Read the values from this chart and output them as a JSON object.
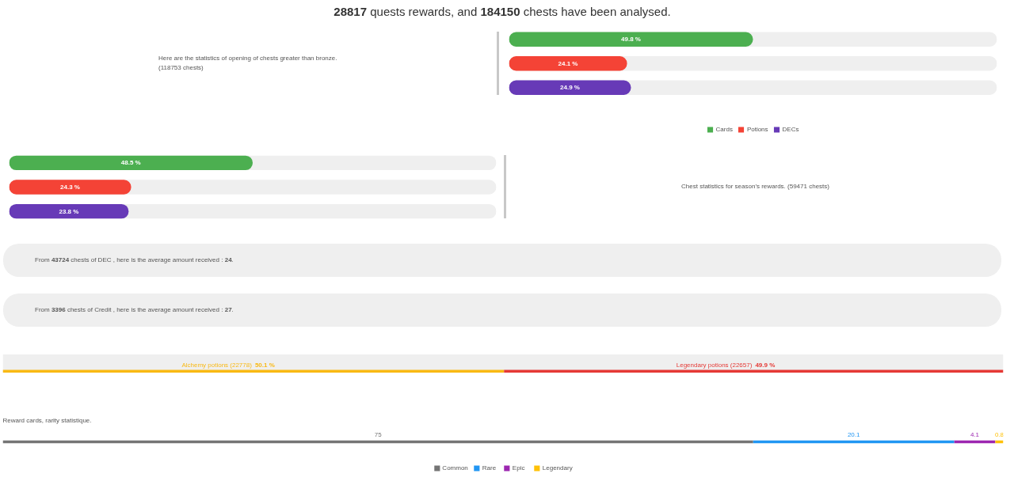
{
  "chart_data": [
    {
      "type": "bar",
      "orientation": "horizontal",
      "stacked": true,
      "title": "28817 quests rewards, and 184150 chests have been analysed.",
      "annotations": [
        "Here are the statistics of opening of chests greater than bronze.",
        "(118753 chests)"
      ],
      "categories": [
        null,
        null,
        null
      ],
      "series": [
        {
          "name": "Cards",
          "color": "#4caf50",
          "values": [
            49.8,
            null,
            null
          ],
          "value_labels": [
            "49.8 %",
            null,
            null
          ]
        },
        {
          "name": "Potions",
          "color": "#f44336",
          "values": [
            null,
            24.1,
            null
          ],
          "value_labels": [
            null,
            "24.1 %",
            null
          ]
        },
        {
          "name": "DECs",
          "color": "#673ab7",
          "values": [
            null,
            null,
            24.9
          ],
          "value_labels": [
            null,
            null,
            "24.9 %"
          ]
        }
      ],
      "tick_labels": false,
      "legend": "bottom"
    },
    {
      "type": "bar",
      "orientation": "horizontal",
      "annotations": [
        "Chest statistics for season's rewards. (59471 chests)"
      ],
      "categories": [
        null,
        null,
        null
      ],
      "values": [
        48.5,
        24.3,
        23.8
      ],
      "colors": [
        "#4caf50",
        "#f44336",
        "#673ab7"
      ],
      "value_labels": [
        "48.5 %",
        "24.3 %",
        "23.8 %"
      ],
      "tick_labels": false
    },
    {
      "type": "other",
      "annotations": [
        "From 43724 chests of DEC , here is the average amount received : 24.",
        "From 3396 chests of Credit , here is the average amount received : 27."
      ]
    },
    {
      "type": "bar",
      "orientation": "horizontal",
      "stacked": true,
      "categories": [
        null
      ],
      "series": [
        {
          "name": "Alchemy potions (22778)",
          "color": "#f9b914",
          "values": [
            50.1
          ],
          "value_labels": [
            "50.1 %"
          ]
        },
        {
          "name": "Legendary potions (22657)",
          "color": "#e53935",
          "values": [
            49.9
          ],
          "value_labels": [
            "49.9 %"
          ]
        }
      ],
      "tick_labels": false
    },
    {
      "type": "bar",
      "orientation": "horizontal",
      "stacked": true,
      "title": "Reward cards, rarity statistique.",
      "categories": [
        null
      ],
      "series": [
        {
          "name": "Common",
          "color": "#757575",
          "values": [
            75
          ]
        },
        {
          "name": "Rare",
          "color": "#2196f3",
          "values": [
            20.1
          ]
        },
        {
          "name": "Epic",
          "color": "#9c27b0",
          "values": [
            4.1
          ]
        },
        {
          "name": "Legendary",
          "color": "#ffc107",
          "values": [
            0.8
          ]
        }
      ],
      "data_labels": true,
      "tick_labels": false,
      "legend": "bottom"
    }
  ]
}
